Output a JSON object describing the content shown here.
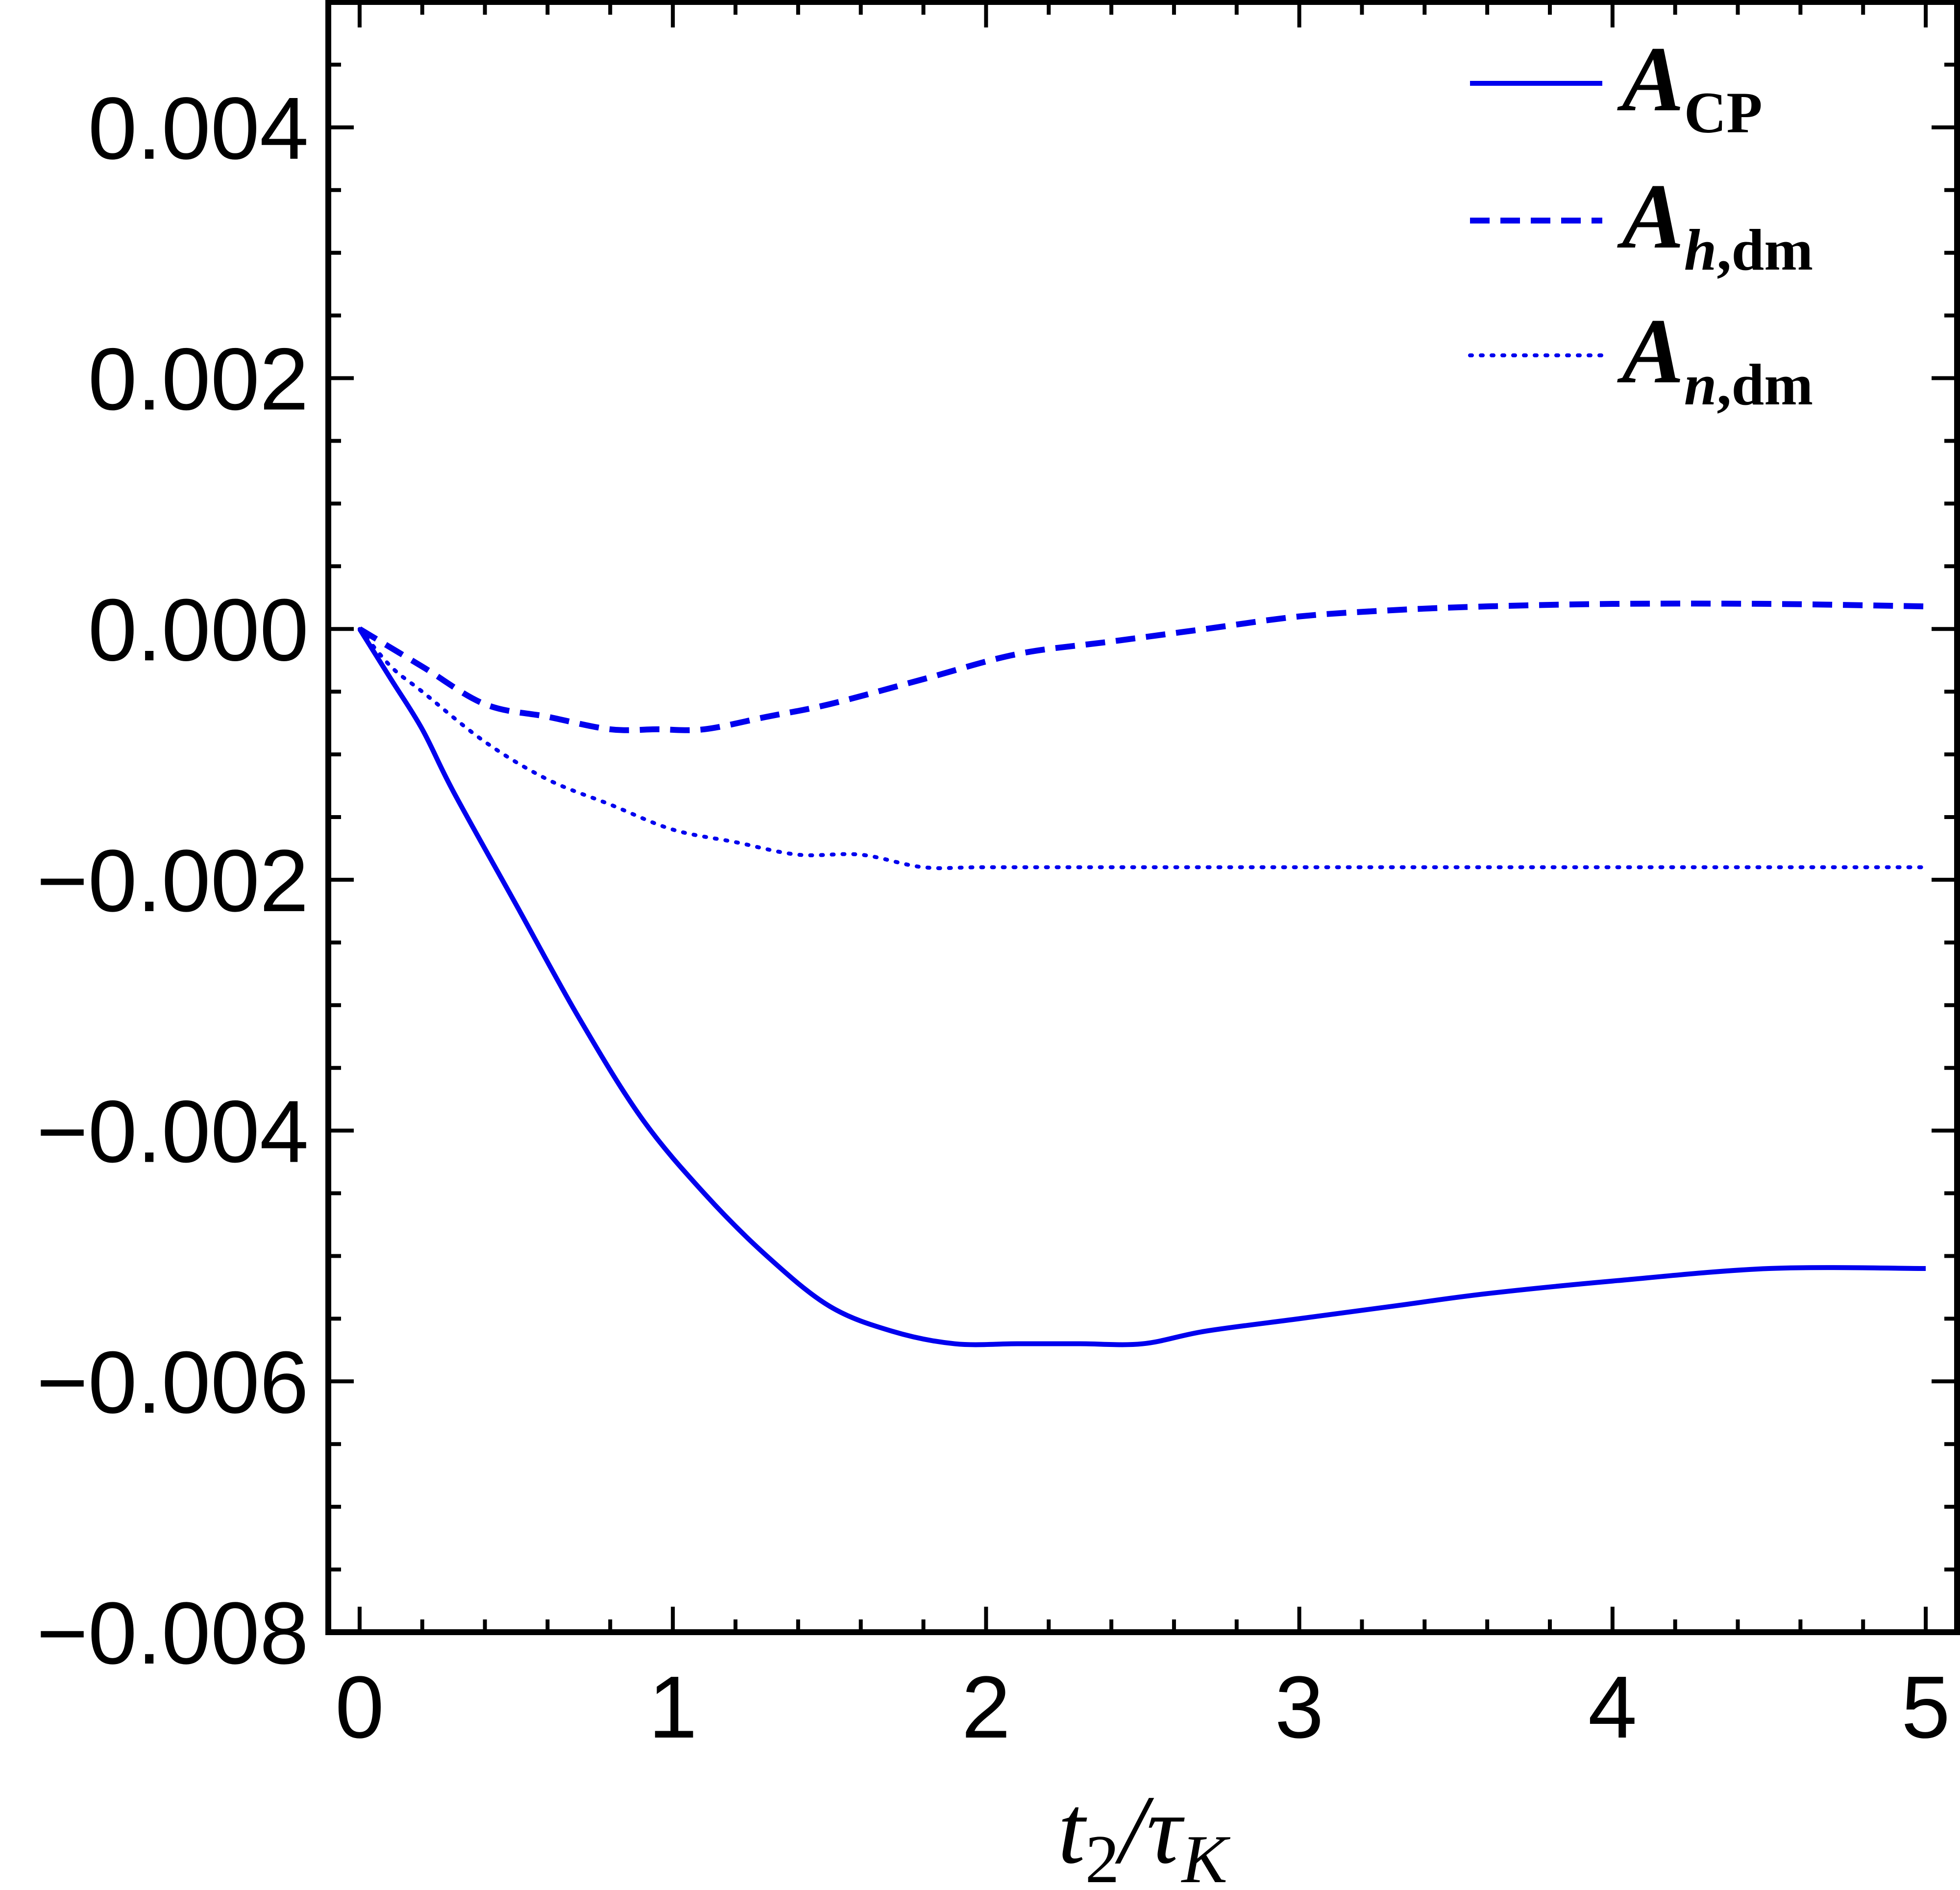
{
  "chart_data": {
    "type": "line",
    "xlabel": {
      "main": "t",
      "sub": "2",
      "mid": "/τ",
      "sub2": "K"
    },
    "ylabel": "",
    "xlim": [
      -0.1,
      5.1
    ],
    "ylim": [
      -0.008,
      0.005
    ],
    "x_ticks": [
      0,
      1,
      2,
      3,
      4,
      5
    ],
    "x_tick_labels": [
      "0",
      "1",
      "2",
      "3",
      "4",
      "5"
    ],
    "y_ticks": [
      -0.008,
      -0.006,
      -0.004,
      -0.002,
      0.0,
      0.002,
      0.004
    ],
    "y_tick_labels": [
      "−0.008",
      "−0.006",
      "−0.004",
      "−0.002",
      "0.000",
      "0.002",
      "0.004"
    ],
    "legend_position": "top-right",
    "colors": {
      "series": "#0000ee",
      "axes": "#000000"
    },
    "series": [
      {
        "name": "ACP",
        "legend": {
          "main": "A",
          "sub": "CP",
          "sub_italic": ""
        },
        "style": "solid",
        "x": [
          0,
          0.1,
          0.2,
          0.3,
          0.5,
          0.7,
          0.9,
          1.1,
          1.3,
          1.5,
          1.7,
          1.9,
          2.1,
          2.3,
          2.5,
          2.7,
          3.0,
          3.3,
          3.6,
          4.0,
          4.5,
          5.0
        ],
        "y": [
          0,
          -0.0004,
          -0.0008,
          -0.0013,
          -0.0022,
          -0.0031,
          -0.0039,
          -0.0045,
          -0.005,
          -0.0054,
          -0.0056,
          -0.0057,
          -0.0057,
          -0.0057,
          -0.0057,
          -0.0056,
          -0.0055,
          -0.0054,
          -0.0053,
          -0.0052,
          -0.0051,
          -0.0051
        ]
      },
      {
        "name": "Ah,dm",
        "legend": {
          "main": "A",
          "sub": ",dm",
          "sub_italic": "h"
        },
        "style": "dashed",
        "x": [
          0,
          0.2,
          0.4,
          0.6,
          0.8,
          0.95,
          1.1,
          1.3,
          1.5,
          1.8,
          2.1,
          2.4,
          2.7,
          3.0,
          3.3,
          3.6,
          4.0,
          4.5,
          5.0
        ],
        "y": [
          0,
          -0.0003,
          -0.0006,
          -0.0007,
          -0.0008,
          -0.0008,
          -0.0008,
          -0.0007,
          -0.0006,
          -0.0004,
          -0.0002,
          -0.0001,
          0.0,
          0.0001,
          0.00015,
          0.00018,
          0.0002,
          0.0002,
          0.00018
        ]
      },
      {
        "name": "An,dm",
        "legend": {
          "main": "A",
          "sub": ",dm",
          "sub_italic": "n"
        },
        "style": "dotted",
        "x": [
          0,
          0.1,
          0.2,
          0.4,
          0.6,
          0.8,
          1.0,
          1.2,
          1.4,
          1.6,
          1.8,
          2.0,
          2.5,
          3.0,
          3.5,
          4.0,
          4.5,
          5.0
        ],
        "y": [
          0,
          -0.0003,
          -0.0005,
          -0.0009,
          -0.0012,
          -0.0014,
          -0.0016,
          -0.0017,
          -0.0018,
          -0.0018,
          -0.0019,
          -0.0019,
          -0.0019,
          -0.0019,
          -0.0019,
          -0.0019,
          -0.0019,
          -0.0019
        ]
      }
    ]
  }
}
